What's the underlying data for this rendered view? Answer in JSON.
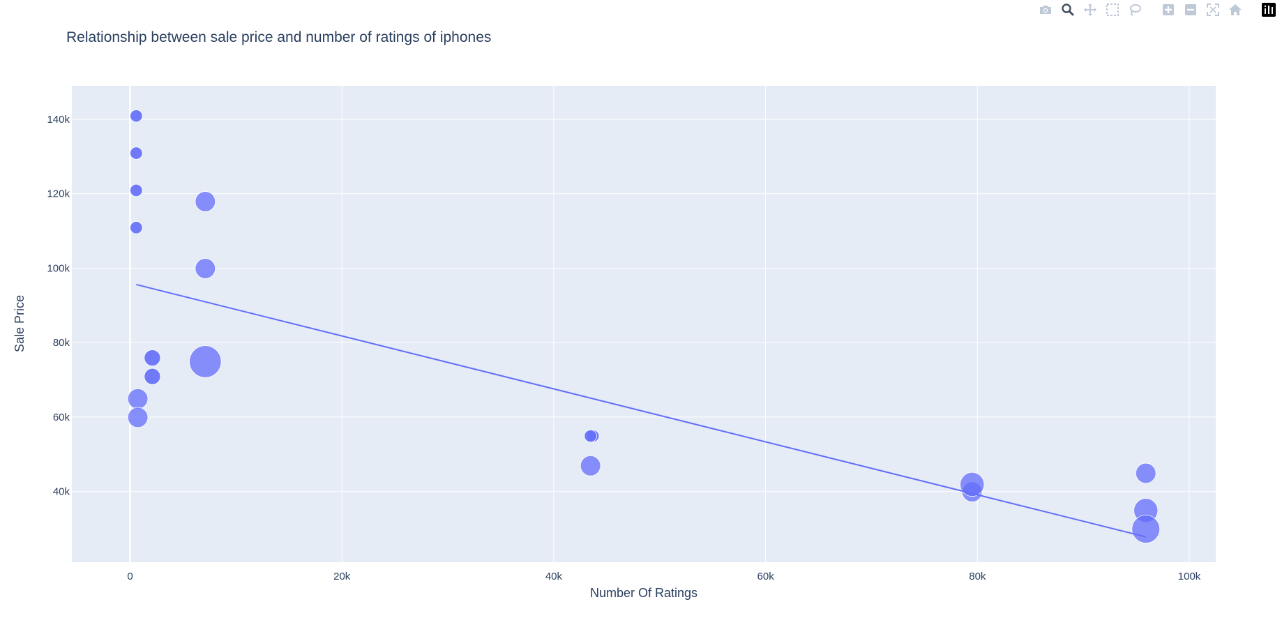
{
  "modebar": {
    "buttons": [
      {
        "icon": "camera-icon"
      },
      {
        "icon": "zoom-icon"
      },
      {
        "icon": "pan-icon"
      },
      {
        "icon": "box-select-icon"
      },
      {
        "icon": "lasso-icon"
      },
      {
        "icon": "zoom-in-icon"
      },
      {
        "icon": "zoom-out-icon"
      },
      {
        "icon": "autoscale-icon"
      },
      {
        "icon": "reset-axes-icon"
      },
      {
        "icon": "plotly-logo-icon"
      }
    ]
  },
  "chart_data": {
    "type": "scatter",
    "title": "Relationship between sale price and number of ratings of iphones",
    "xlabel": "Number Of Ratings",
    "ylabel": "Sale Price",
    "xlim": [
      -5500,
      102500
    ],
    "ylim": [
      21000,
      149000
    ],
    "xticks": [
      0,
      20000,
      40000,
      60000,
      80000,
      100000
    ],
    "xtick_labels": [
      "0",
      "20k",
      "40k",
      "60k",
      "80k",
      "100k"
    ],
    "yticks": [
      40000,
      60000,
      80000,
      100000,
      120000,
      140000
    ],
    "ytick_labels": [
      "40k",
      "60k",
      "80k",
      "100k",
      "120k",
      "140k"
    ],
    "grid": true,
    "colors": {
      "marker": "#636efa",
      "plot_bg": "#e5ecf6",
      "grid": "#ffffff",
      "text": "#2a3f5f"
    },
    "points": [
      {
        "x": 580,
        "y": 140900,
        "size": 1
      },
      {
        "x": 580,
        "y": 130900,
        "size": 1
      },
      {
        "x": 580,
        "y": 120900,
        "size": 1
      },
      {
        "x": 580,
        "y": 110900,
        "size": 1
      },
      {
        "x": 7100,
        "y": 117900,
        "size": 3
      },
      {
        "x": 7100,
        "y": 99900,
        "size": 3
      },
      {
        "x": 7100,
        "y": 74900,
        "size": 6
      },
      {
        "x": 2100,
        "y": 75900,
        "size": 2
      },
      {
        "x": 2100,
        "y": 70900,
        "size": 2
      },
      {
        "x": 730,
        "y": 64900,
        "size": 3
      },
      {
        "x": 730,
        "y": 59900,
        "size": 3
      },
      {
        "x": 43700,
        "y": 54900,
        "size": 1
      },
      {
        "x": 43470,
        "y": 54900,
        "size": 1
      },
      {
        "x": 43470,
        "y": 46900,
        "size": 3
      },
      {
        "x": 79500,
        "y": 39900,
        "size": 3
      },
      {
        "x": 79500,
        "y": 41900,
        "size": 4
      },
      {
        "x": 95900,
        "y": 44900,
        "size": 3
      },
      {
        "x": 95900,
        "y": 34900,
        "size": 4
      },
      {
        "x": 95900,
        "y": 29900,
        "size": 5
      }
    ],
    "trendline": {
      "x": [
        580,
        95900
      ],
      "y": [
        95600,
        27800
      ]
    }
  }
}
